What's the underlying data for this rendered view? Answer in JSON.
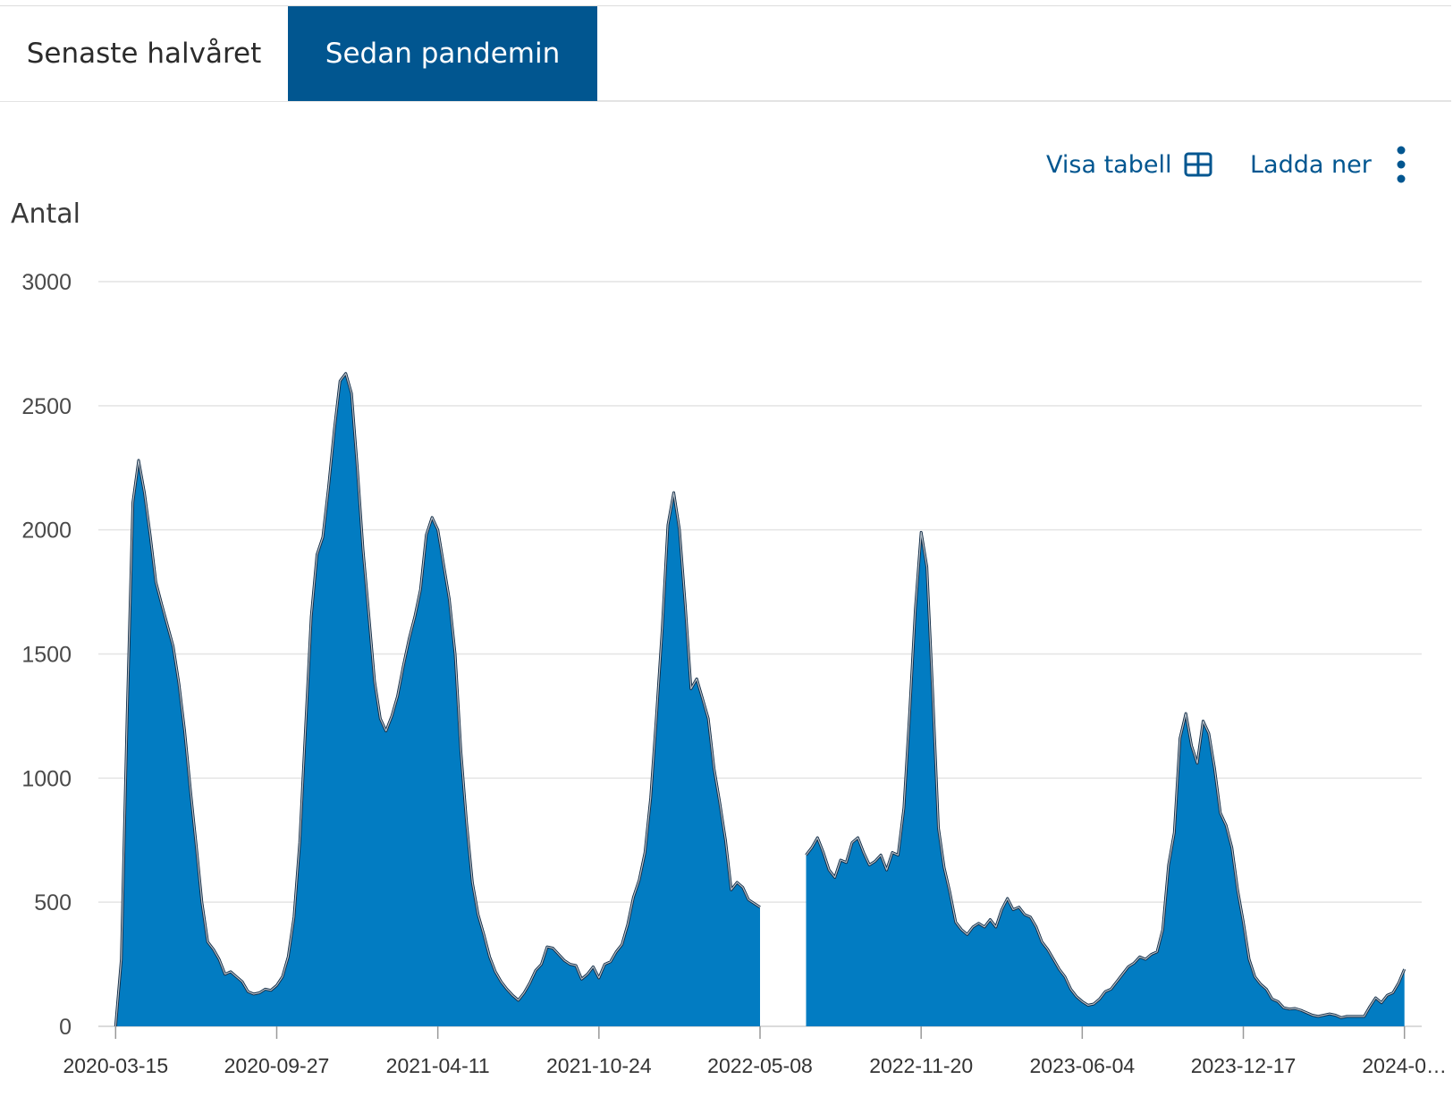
{
  "tabs": [
    {
      "label": "Senaste halvåret",
      "active": false
    },
    {
      "label": "Sedan pandemin",
      "active": true
    }
  ],
  "toolbar": {
    "show_table_label": "Visa tabell",
    "show_table_icon": "table-grid-icon",
    "download_label": "Ladda ner",
    "download_icon": "kebab-menu-icon"
  },
  "colors": {
    "tab_active_bg": "#015690",
    "accent_text": "#015690",
    "series_fill": "#027CC2",
    "overlay_fill": "#0E2A45"
  },
  "chart_data": {
    "type": "area",
    "ylabel": "Antal",
    "ylim": [
      0,
      3000
    ],
    "yticks": [
      0,
      500,
      1000,
      1500,
      2000,
      2500,
      3000
    ],
    "grid": true,
    "xlim": [
      "2020-02-23",
      "2024-07-21"
    ],
    "xticks": [
      "2020-03-15",
      "2020-09-27",
      "2021-04-11",
      "2021-10-24",
      "2022-05-08",
      "2022-11-20",
      "2023-06-04",
      "2023-12-17",
      "2024-06-30"
    ],
    "xtick_labels": [
      "2020-03-15",
      "2020-09-27",
      "2021-04-11",
      "2021-10-24",
      "2022-05-08",
      "2022-11-20",
      "2023-06-04",
      "2023-12-17",
      "2024-0…"
    ],
    "series": [
      {
        "segments": [
          [
            [
              "2020-03-15",
              0
            ],
            [
              "2020-03-22",
              270
            ],
            [
              "2020-03-29",
              1250
            ],
            [
              "2020-04-05",
              2110
            ],
            [
              "2020-04-12",
              2280
            ],
            [
              "2020-04-19",
              2150
            ],
            [
              "2020-04-26",
              1980
            ],
            [
              "2020-05-03",
              1790
            ],
            [
              "2020-05-10",
              1700
            ],
            [
              "2020-05-24",
              1530
            ],
            [
              "2020-05-31",
              1380
            ],
            [
              "2020-06-07",
              1190
            ],
            [
              "2020-06-14",
              950
            ],
            [
              "2020-06-21",
              730
            ],
            [
              "2020-06-28",
              500
            ],
            [
              "2020-07-05",
              340
            ],
            [
              "2020-07-12",
              310
            ],
            [
              "2020-07-19",
              270
            ],
            [
              "2020-07-26",
              210
            ],
            [
              "2020-08-02",
              220
            ],
            [
              "2020-08-09",
              200
            ],
            [
              "2020-08-16",
              180
            ],
            [
              "2020-08-23",
              140
            ],
            [
              "2020-08-30",
              130
            ],
            [
              "2020-09-06",
              135
            ],
            [
              "2020-09-13",
              150
            ],
            [
              "2020-09-20",
              145
            ],
            [
              "2020-09-27",
              165
            ],
            [
              "2020-10-04",
              200
            ],
            [
              "2020-10-11",
              280
            ],
            [
              "2020-10-18",
              440
            ],
            [
              "2020-10-25",
              740
            ],
            [
              "2020-11-01",
              1200
            ],
            [
              "2020-11-08",
              1650
            ],
            [
              "2020-11-15",
              1900
            ],
            [
              "2020-11-22",
              1970
            ],
            [
              "2020-11-29",
              2170
            ],
            [
              "2020-12-06",
              2400
            ],
            [
              "2020-12-13",
              2600
            ],
            [
              "2020-12-20",
              2630
            ],
            [
              "2020-12-27",
              2550
            ],
            [
              "2021-01-03",
              2250
            ],
            [
              "2021-01-10",
              1920
            ],
            [
              "2021-01-17",
              1660
            ],
            [
              "2021-01-24",
              1390
            ],
            [
              "2021-01-31",
              1240
            ],
            [
              "2021-02-07",
              1190
            ],
            [
              "2021-02-14",
              1250
            ],
            [
              "2021-02-21",
              1330
            ],
            [
              "2021-02-28",
              1450
            ],
            [
              "2021-03-07",
              1560
            ],
            [
              "2021-03-14",
              1650
            ],
            [
              "2021-03-21",
              1760
            ],
            [
              "2021-03-28",
              1980
            ],
            [
              "2021-04-04",
              2050
            ],
            [
              "2021-04-11",
              2000
            ],
            [
              "2021-04-18",
              1860
            ],
            [
              "2021-04-25",
              1720
            ],
            [
              "2021-05-02",
              1500
            ],
            [
              "2021-05-09",
              1110
            ],
            [
              "2021-05-16",
              820
            ],
            [
              "2021-05-23",
              580
            ],
            [
              "2021-05-30",
              450
            ],
            [
              "2021-06-06",
              370
            ],
            [
              "2021-06-13",
              280
            ],
            [
              "2021-06-20",
              220
            ],
            [
              "2021-06-27",
              180
            ],
            [
              "2021-07-04",
              150
            ],
            [
              "2021-07-11",
              125
            ],
            [
              "2021-07-18",
              105
            ],
            [
              "2021-07-25",
              135
            ],
            [
              "2021-08-01",
              175
            ],
            [
              "2021-08-08",
              225
            ],
            [
              "2021-08-15",
              250
            ],
            [
              "2021-08-22",
              320
            ],
            [
              "2021-08-29",
              315
            ],
            [
              "2021-09-05",
              290
            ],
            [
              "2021-09-12",
              265
            ],
            [
              "2021-09-19",
              250
            ],
            [
              "2021-09-26",
              245
            ],
            [
              "2021-10-03",
              190
            ],
            [
              "2021-10-10",
              210
            ],
            [
              "2021-10-17",
              240
            ],
            [
              "2021-10-24",
              195
            ],
            [
              "2021-10-31",
              250
            ],
            [
              "2021-11-07",
              260
            ],
            [
              "2021-11-14",
              300
            ],
            [
              "2021-11-21",
              330
            ],
            [
              "2021-11-28",
              410
            ],
            [
              "2021-12-05",
              520
            ],
            [
              "2021-12-12",
              590
            ],
            [
              "2021-12-19",
              700
            ],
            [
              "2021-12-26",
              920
            ],
            [
              "2022-01-02",
              1250
            ],
            [
              "2022-01-09",
              1600
            ],
            [
              "2022-01-16",
              2020
            ],
            [
              "2022-01-23",
              2150
            ],
            [
              "2022-01-30",
              2000
            ],
            [
              "2022-02-06",
              1700
            ],
            [
              "2022-02-13",
              1360
            ],
            [
              "2022-02-20",
              1400
            ],
            [
              "2022-02-27",
              1320
            ],
            [
              "2022-03-06",
              1240
            ],
            [
              "2022-03-13",
              1040
            ],
            [
              "2022-03-20",
              900
            ],
            [
              "2022-03-27",
              750
            ],
            [
              "2022-04-03",
              550
            ],
            [
              "2022-04-10",
              580
            ],
            [
              "2022-04-17",
              560
            ],
            [
              "2022-04-24",
              510
            ],
            [
              "2022-05-08",
              480
            ]
          ],
          [
            [
              "2022-07-03",
              690
            ],
            [
              "2022-07-10",
              720
            ],
            [
              "2022-07-17",
              760
            ],
            [
              "2022-07-24",
              700
            ],
            [
              "2022-07-31",
              630
            ],
            [
              "2022-08-07",
              600
            ],
            [
              "2022-08-14",
              670
            ],
            [
              "2022-08-21",
              660
            ],
            [
              "2022-08-28",
              740
            ],
            [
              "2022-09-04",
              760
            ],
            [
              "2022-09-11",
              700
            ],
            [
              "2022-09-18",
              650
            ],
            [
              "2022-09-25",
              665
            ],
            [
              "2022-10-02",
              690
            ],
            [
              "2022-10-09",
              630
            ],
            [
              "2022-10-16",
              700
            ],
            [
              "2022-10-23",
              690
            ],
            [
              "2022-10-30",
              880
            ],
            [
              "2022-11-06",
              1260
            ],
            [
              "2022-11-13",
              1680
            ],
            [
              "2022-11-20",
              1990
            ],
            [
              "2022-11-27",
              1850
            ],
            [
              "2022-12-04",
              1350
            ],
            [
              "2022-12-11",
              800
            ],
            [
              "2022-12-18",
              640
            ],
            [
              "2022-12-25",
              540
            ],
            [
              "2023-01-01",
              420
            ],
            [
              "2023-01-08",
              390
            ],
            [
              "2023-01-15",
              370
            ],
            [
              "2023-01-22",
              400
            ],
            [
              "2023-01-29",
              415
            ],
            [
              "2023-02-05",
              400
            ],
            [
              "2023-02-12",
              430
            ],
            [
              "2023-02-19",
              400
            ],
            [
              "2023-02-26",
              470
            ],
            [
              "2023-03-05",
              515
            ],
            [
              "2023-03-12",
              470
            ],
            [
              "2023-03-19",
              480
            ],
            [
              "2023-03-26",
              450
            ],
            [
              "2023-04-02",
              440
            ],
            [
              "2023-04-09",
              400
            ],
            [
              "2023-04-16",
              340
            ],
            [
              "2023-04-23",
              310
            ],
            [
              "2023-04-30",
              270
            ],
            [
              "2023-05-07",
              230
            ],
            [
              "2023-05-14",
              200
            ],
            [
              "2023-05-21",
              150
            ],
            [
              "2023-05-28",
              120
            ],
            [
              "2023-06-04",
              100
            ],
            [
              "2023-06-11",
              85
            ],
            [
              "2023-06-18",
              90
            ],
            [
              "2023-06-25",
              110
            ],
            [
              "2023-07-02",
              140
            ],
            [
              "2023-07-09",
              150
            ],
            [
              "2023-07-16",
              180
            ],
            [
              "2023-07-23",
              210
            ],
            [
              "2023-07-30",
              240
            ],
            [
              "2023-08-06",
              255
            ],
            [
              "2023-08-13",
              280
            ],
            [
              "2023-08-20",
              270
            ],
            [
              "2023-08-27",
              290
            ],
            [
              "2023-09-03",
              300
            ],
            [
              "2023-09-10",
              390
            ],
            [
              "2023-09-17",
              650
            ],
            [
              "2023-09-24",
              780
            ],
            [
              "2023-10-01",
              1160
            ],
            [
              "2023-10-08",
              1260
            ],
            [
              "2023-10-15",
              1130
            ],
            [
              "2023-10-22",
              1060
            ],
            [
              "2023-10-29",
              1230
            ],
            [
              "2023-11-05",
              1180
            ],
            [
              "2023-11-12",
              1040
            ],
            [
              "2023-11-19",
              860
            ],
            [
              "2023-11-26",
              810
            ],
            [
              "2023-12-03",
              720
            ],
            [
              "2023-12-10",
              550
            ],
            [
              "2023-12-17",
              420
            ],
            [
              "2023-12-24",
              270
            ],
            [
              "2023-12-31",
              200
            ],
            [
              "2024-01-07",
              170
            ],
            [
              "2024-01-14",
              150
            ],
            [
              "2024-01-21",
              110
            ],
            [
              "2024-01-28",
              100
            ],
            [
              "2024-02-04",
              75
            ],
            [
              "2024-02-11",
              70
            ],
            [
              "2024-02-18",
              72
            ],
            [
              "2024-02-25",
              65
            ],
            [
              "2024-03-03",
              55
            ],
            [
              "2024-03-10",
              45
            ],
            [
              "2024-03-17",
              40
            ],
            [
              "2024-03-24",
              45
            ],
            [
              "2024-03-31",
              50
            ],
            [
              "2024-04-07",
              45
            ],
            [
              "2024-04-14",
              35
            ],
            [
              "2024-04-21",
              40
            ],
            [
              "2024-04-28",
              40
            ],
            [
              "2024-05-05",
              40
            ],
            [
              "2024-05-12",
              40
            ],
            [
              "2024-05-19",
              80
            ],
            [
              "2024-05-26",
              115
            ],
            [
              "2024-06-02",
              95
            ],
            [
              "2024-06-09",
              125
            ],
            [
              "2024-06-16",
              135
            ],
            [
              "2024-06-23",
              175
            ],
            [
              "2024-06-30",
              230
            ]
          ]
        ]
      }
    ]
  }
}
